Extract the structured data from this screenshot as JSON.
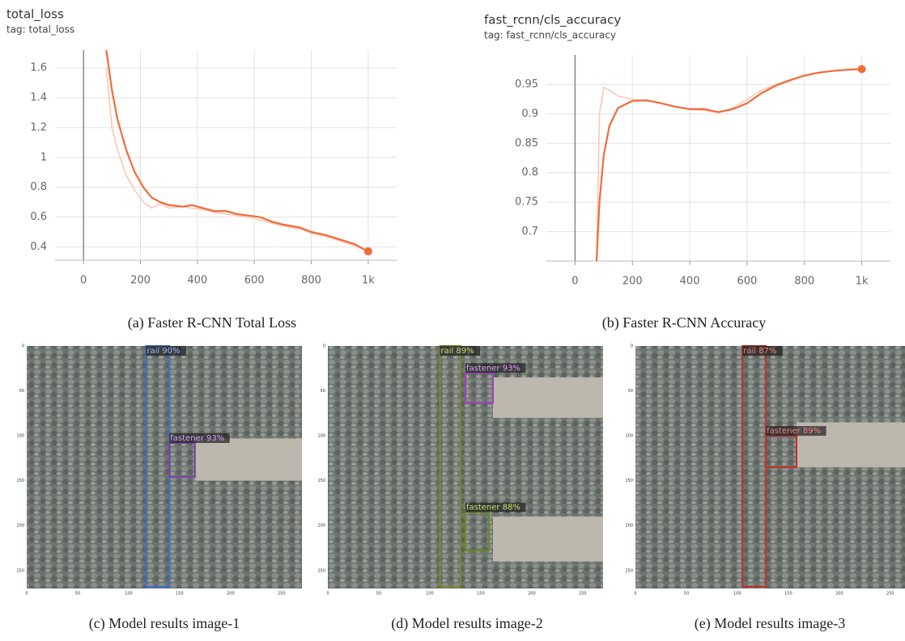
{
  "chart_data": [
    {
      "type": "line",
      "title": "total_loss",
      "subtitle": "tag: total_loss",
      "x": [
        80,
        100,
        120,
        150,
        180,
        210,
        240,
        270,
        300,
        350,
        380,
        420,
        460,
        500,
        540,
        580,
        620,
        660,
        700,
        760,
        800,
        850,
        900,
        950,
        1000
      ],
      "series": [
        {
          "color": "#f9c9b8",
          "values": [
            1.6,
            1.2,
            1.05,
            0.88,
            0.78,
            0.7,
            0.66,
            0.69,
            0.66,
            0.67,
            0.66,
            0.65,
            0.63,
            0.62,
            0.61,
            0.6,
            0.58,
            0.56,
            0.54,
            0.52,
            0.49,
            0.47,
            0.44,
            0.41,
            0.37
          ]
        },
        {
          "color": "#f26b3a",
          "values": [
            1.72,
            1.45,
            1.25,
            1.05,
            0.9,
            0.8,
            0.73,
            0.7,
            0.68,
            0.67,
            0.68,
            0.66,
            0.64,
            0.64,
            0.62,
            0.61,
            0.6,
            0.57,
            0.55,
            0.53,
            0.5,
            0.48,
            0.45,
            0.42,
            0.37
          ]
        }
      ],
      "xlim": [
        -100,
        1100
      ],
      "xticks": [
        0,
        200,
        400,
        600,
        800,
        {
          "value": 1000,
          "label": "1k"
        }
      ],
      "ylim": [
        0.31,
        1.72
      ],
      "yticks": [
        0.4,
        0.6,
        0.8,
        1,
        1.2,
        1.4,
        1.6
      ],
      "grid": true
    },
    {
      "type": "line",
      "title": "fast_rcnn/cls_accuracy",
      "subtitle": "tag: fast_rcnn/cls_accuracy",
      "x": [
        75,
        85,
        100,
        120,
        150,
        200,
        250,
        300,
        350,
        400,
        450,
        500,
        550,
        600,
        650,
        700,
        750,
        800,
        850,
        900,
        950,
        1000
      ],
      "series": [
        {
          "color": "#f9c9b8",
          "values": [
            0.65,
            0.9,
            0.945,
            0.94,
            0.93,
            0.925,
            0.922,
            0.918,
            0.912,
            0.908,
            0.906,
            0.902,
            0.91,
            0.925,
            0.94,
            0.95,
            0.958,
            0.965,
            0.97,
            0.973,
            0.975,
            0.976
          ]
        },
        {
          "color": "#f26b3a",
          "values": [
            0.65,
            0.75,
            0.83,
            0.88,
            0.91,
            0.922,
            0.923,
            0.918,
            0.912,
            0.908,
            0.908,
            0.903,
            0.908,
            0.918,
            0.935,
            0.948,
            0.957,
            0.965,
            0.97,
            0.973,
            0.975,
            0.976
          ]
        }
      ],
      "xlim": [
        -100,
        1100
      ],
      "xticks": [
        0,
        200,
        400,
        600,
        800,
        {
          "value": 1000,
          "label": "1k"
        }
      ],
      "ylim": [
        0.65,
        1.0
      ],
      "yticks": [
        0.7,
        0.75,
        0.8,
        0.85,
        0.9,
        0.95
      ],
      "grid": true
    }
  ],
  "chart_captions": [
    "(a) Faster R-CNN Total Loss",
    "(b) Faster R-CNN Accuracy"
  ],
  "panels": [
    {
      "caption": "(c) Model results image-1",
      "xticks": [
        0,
        50,
        100,
        150,
        200,
        250
      ],
      "yticks": [
        0,
        50,
        100,
        150,
        200,
        250
      ],
      "detections": [
        {
          "label": "rail 90%",
          "color": "#3b6fd4"
        },
        {
          "label": "fastener 93%",
          "color": "#7a3fa8"
        }
      ]
    },
    {
      "caption": "(d) Model results image-2",
      "xticks": [
        0,
        50,
        100,
        150,
        200,
        250
      ],
      "yticks": [
        0,
        50,
        100,
        150,
        200,
        250
      ],
      "detections": [
        {
          "label": "rail 89%",
          "color": "#7f8a2a"
        },
        {
          "label": "fastener 93%",
          "color": "#a040c0"
        },
        {
          "label": "fastener 88%",
          "color": "#6a8a20"
        }
      ]
    },
    {
      "caption": "(e) Model results image-3",
      "xticks": [
        0,
        50,
        100,
        150,
        200,
        250
      ],
      "yticks": [
        0,
        50,
        100,
        150,
        200,
        250
      ],
      "detections": [
        {
          "label": "rail 87%",
          "color": "#c0302a"
        },
        {
          "label": "fastener 89%",
          "color": "#c0302a"
        }
      ]
    }
  ]
}
